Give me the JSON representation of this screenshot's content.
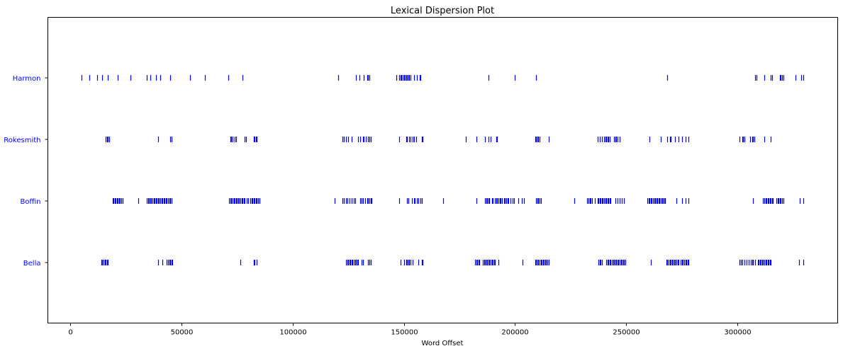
{
  "chart_data": {
    "type": "scatter",
    "title": "Lexical Dispersion Plot",
    "xlabel": "Word Offset",
    "ylabel": "",
    "xlim": [
      -10000,
      345000
    ],
    "xticks": [
      0,
      50000,
      100000,
      150000,
      200000,
      250000,
      300000
    ],
    "grid": false,
    "legend": "none",
    "color": "#0000ff",
    "marker": "|",
    "categories": [
      "Bella",
      "Boffin",
      "Rokesmith",
      "Harmon"
    ],
    "series": [
      {
        "label": "Harmon",
        "x": [
          5000,
          8500,
          12000,
          14500,
          17000,
          21500,
          27000,
          34500,
          36000,
          38500,
          40500,
          45000,
          54000,
          60500,
          71000,
          77500,
          120500,
          128500,
          130000,
          132000,
          133500,
          134000,
          134500,
          146500,
          148000,
          148500,
          149000,
          149500,
          150000,
          150500,
          151000,
          151500,
          152000,
          152500,
          153000,
          154500,
          156000,
          157000,
          157500,
          188000,
          200000,
          209500,
          268500,
          308000,
          308500,
          312000,
          315000,
          315500,
          319000,
          319500,
          320000,
          320500,
          326000,
          328500,
          329500
        ]
      },
      {
        "label": "Rokesmith",
        "x": [
          16000,
          16500,
          17000,
          17500,
          39500,
          45000,
          45500,
          72000,
          72500,
          73000,
          74000,
          74500,
          78500,
          79000,
          82500,
          83000,
          83500,
          84000,
          122500,
          123000,
          124000,
          125000,
          126500,
          129500,
          130500,
          131500,
          132000,
          133000,
          134000,
          134500,
          135000,
          148000,
          151000,
          151500,
          152500,
          153000,
          154000,
          154500,
          155500,
          158000,
          158500,
          178000,
          182500,
          186500,
          188000,
          189000,
          191500,
          192000,
          209000,
          209500,
          210000,
          210500,
          211000,
          215000,
          237000,
          238000,
          239000,
          240000,
          240500,
          241000,
          241500,
          242000,
          242500,
          244500,
          245000,
          245500,
          246000,
          247000,
          260500,
          265500,
          268500,
          269500,
          270000,
          272000,
          273500,
          275000,
          276500,
          278000,
          301000,
          302000,
          302500,
          303000,
          305500,
          306500,
          307000,
          307500,
          312000,
          315000
        ]
      },
      {
        "label": "Boffin",
        "x": [
          19000,
          19500,
          20000,
          20500,
          21000,
          21500,
          22000,
          22500,
          23000,
          23500,
          30500,
          34500,
          35000,
          35500,
          36000,
          36500,
          37000,
          37500,
          38000,
          38500,
          39000,
          39500,
          40000,
          40500,
          41000,
          41500,
          42000,
          42500,
          43000,
          43500,
          44000,
          44500,
          45000,
          45500,
          71500,
          72000,
          72500,
          73000,
          73500,
          74000,
          74500,
          75000,
          75500,
          76000,
          76500,
          77000,
          77500,
          78000,
          78500,
          79500,
          80000,
          81000,
          81500,
          82000,
          82500,
          83000,
          83500,
          84000,
          84500,
          85000,
          119000,
          122500,
          123000,
          124000,
          124500,
          125500,
          126500,
          127500,
          128000,
          130500,
          131000,
          131500,
          132500,
          133500,
          134000,
          134500,
          135000,
          135500,
          148000,
          151500,
          152000,
          153500,
          154500,
          155000,
          156000,
          156500,
          157500,
          158000,
          167500,
          182500,
          186500,
          187000,
          187500,
          188000,
          188500,
          189500,
          190000,
          191000,
          191500,
          192000,
          192500,
          193000,
          193500,
          194000,
          195000,
          195500,
          196000,
          196500,
          197000,
          198000,
          199000,
          199500,
          201500,
          203000,
          204000,
          209500,
          210000,
          210500,
          211000,
          211500,
          226500,
          232500,
          233000,
          233500,
          234000,
          234500,
          236000,
          237000,
          237500,
          238000,
          238500,
          239000,
          239500,
          240000,
          240500,
          241000,
          241500,
          242000,
          242500,
          243000,
          245000,
          246000,
          247000,
          248000,
          249000,
          259500,
          260000,
          260500,
          261000,
          261500,
          262000,
          262500,
          263000,
          263500,
          264000,
          264500,
          265000,
          265500,
          266000,
          266500,
          267000,
          267500,
          272500,
          275000,
          276500,
          278000,
          307000,
          311500,
          312000,
          312500,
          313000,
          313500,
          314000,
          314500,
          315000,
          315500,
          316000,
          317500,
          318000,
          318500,
          319000,
          319500,
          320000,
          320500,
          328000,
          329500
        ]
      },
      {
        "label": "Bella",
        "x": [
          14000,
          14500,
          15000,
          15500,
          16000,
          16500,
          17000,
          39500,
          41500,
          43500,
          44000,
          44500,
          45000,
          45500,
          46000,
          76500,
          82500,
          83000,
          84000,
          124000,
          124500,
          125000,
          125500,
          126000,
          126500,
          127000,
          127500,
          128000,
          128500,
          129000,
          129500,
          131000,
          131500,
          134000,
          134500,
          135000,
          148500,
          150000,
          151000,
          151500,
          152000,
          152500,
          153000,
          154000,
          156500,
          158000,
          158500,
          182000,
          182500,
          183000,
          183500,
          184000,
          185500,
          186000,
          186500,
          187000,
          187500,
          188000,
          188500,
          189000,
          189500,
          190000,
          190500,
          191000,
          192500,
          203500,
          209000,
          209500,
          210000,
          210500,
          211000,
          211500,
          212000,
          212500,
          213000,
          213500,
          214000,
          214500,
          215000,
          237500,
          238000,
          238500,
          239000,
          241000,
          241500,
          242000,
          242500,
          243000,
          243500,
          244000,
          244500,
          245000,
          245500,
          246000,
          246500,
          247000,
          247500,
          248000,
          248500,
          249000,
          249500,
          261000,
          268000,
          268500,
          269000,
          269500,
          270000,
          270500,
          271000,
          271500,
          272000,
          272500,
          273000,
          273500,
          274500,
          275000,
          275500,
          276000,
          276500,
          277000,
          277500,
          278000,
          301000,
          301500,
          302000,
          303000,
          304000,
          305000,
          306000,
          306500,
          307000,
          308000,
          309000,
          309500,
          310000,
          310500,
          311000,
          311500,
          312000,
          312500,
          313000,
          313500,
          314000,
          314500,
          315000,
          327500,
          329500
        ]
      }
    ]
  }
}
